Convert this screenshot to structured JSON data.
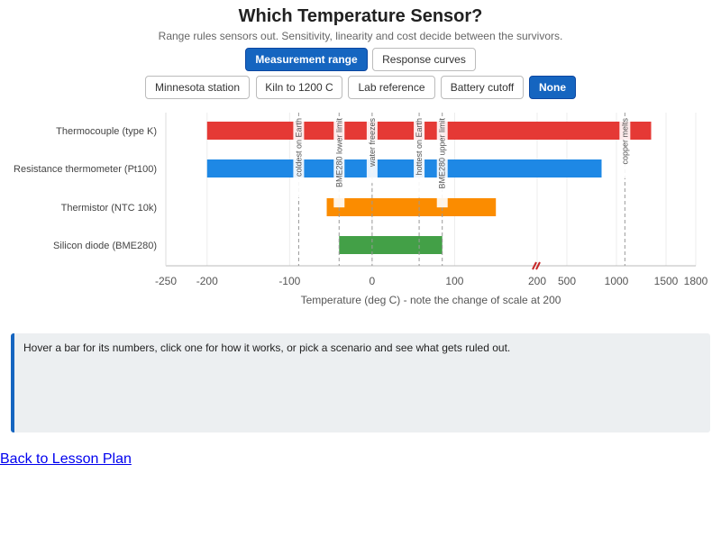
{
  "header": {
    "title": "Which Temperature Sensor?",
    "subtitle": "Range rules sensors out. Sensitivity, linearity and cost decide between the survivors."
  },
  "views": [
    {
      "label": "Measurement range",
      "active": true
    },
    {
      "label": "Response curves",
      "active": false
    }
  ],
  "scenarios": [
    {
      "label": "Minnesota station",
      "active": false
    },
    {
      "label": "Kiln to 1200 C",
      "active": false
    },
    {
      "label": "Lab reference",
      "active": false
    },
    {
      "label": "Battery cutoff",
      "active": false
    },
    {
      "label": "None",
      "active": true
    }
  ],
  "chart_data": {
    "type": "bar",
    "orientation": "horizontal-range",
    "sensors": [
      {
        "name": "Thermocouple (type K)",
        "min": -200,
        "max": 1350,
        "color": "#e53935"
      },
      {
        "name": "Resistance thermometer (Pt100)",
        "min": -200,
        "max": 850,
        "color": "#1e88e5"
      },
      {
        "name": "Thermistor (NTC 10k)",
        "min": -55,
        "max": 150,
        "color": "#fb8c00"
      },
      {
        "name": "Silicon diode (BME280)",
        "min": -40,
        "max": 85,
        "color": "#43a047"
      }
    ],
    "markers": [
      {
        "label": "coldest on Earth",
        "value": -89
      },
      {
        "label": "BME280 lower limit",
        "value": -40
      },
      {
        "label": "water freezes",
        "value": 0
      },
      {
        "label": "hottest on Earth",
        "value": 57
      },
      {
        "label": "BME280 upper limit",
        "value": 85
      },
      {
        "label": "copper melts",
        "value": 1085
      }
    ],
    "x_ticks_linear": [
      -250,
      -200,
      -100,
      0,
      100,
      200
    ],
    "x_ticks_compressed": [
      500,
      1000,
      1500,
      1800
    ],
    "break_at": 200,
    "xlim": [
      -250,
      1800
    ],
    "xlabel": "Temperature (deg C) - note the change of scale at 200",
    "grid": true
  },
  "info": {
    "text": "Hover a bar for its numbers, click one for how it works, or pick a scenario and see what gets ruled out."
  },
  "footer": {
    "back_link": "Back to Lesson Plan"
  }
}
